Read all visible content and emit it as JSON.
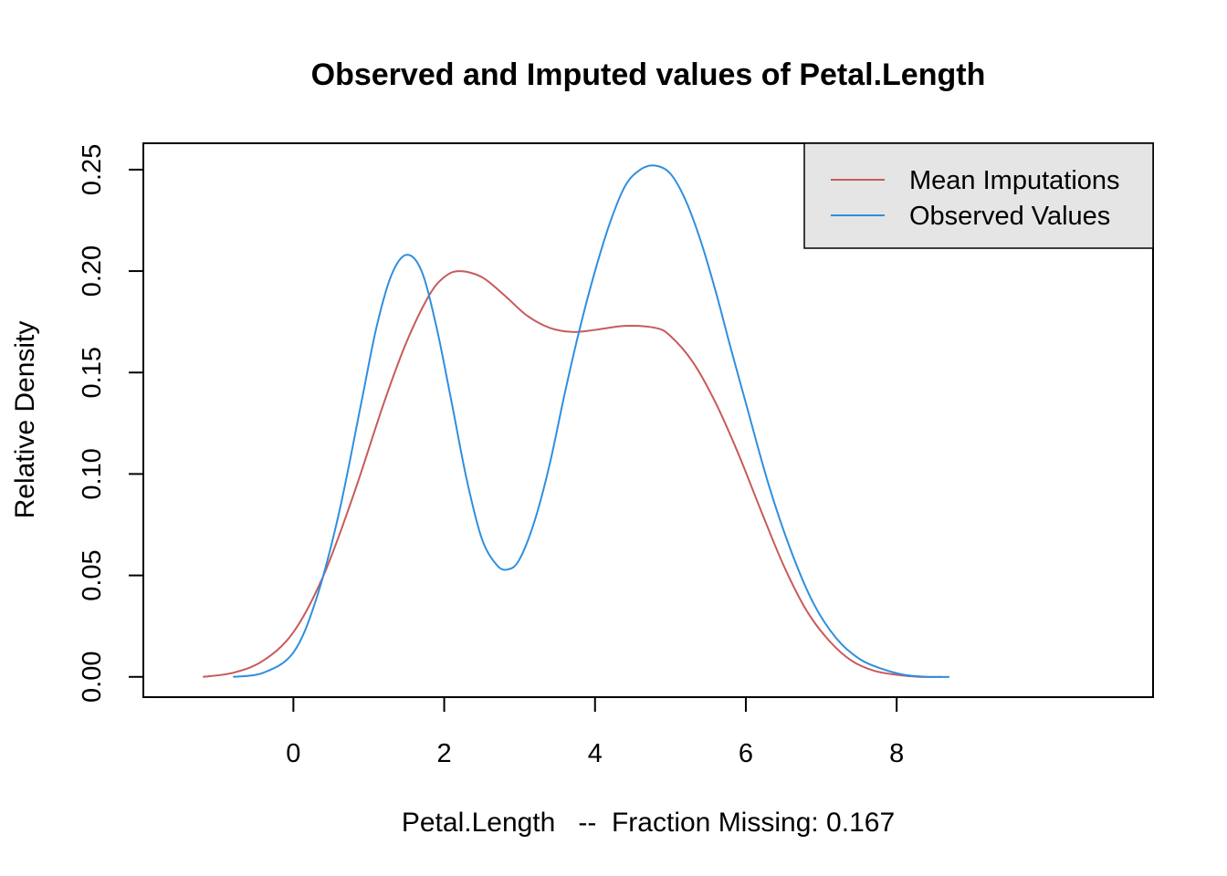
{
  "chart_data": {
    "type": "line",
    "title": "Observed and Imputed values of Petal.Length",
    "xlabel": "Petal.Length   --  Fraction Missing: 0.167",
    "ylabel": "Relative Density",
    "xlim": [
      -1.99,
      11.4
    ],
    "ylim": [
      -0.01,
      0.263
    ],
    "x_ticks": [
      0,
      2,
      4,
      6,
      8
    ],
    "x_tick_labels": [
      "0",
      "2",
      "4",
      "6",
      "8"
    ],
    "y_ticks": [
      0.0,
      0.05,
      0.1,
      0.15,
      0.2,
      0.25
    ],
    "y_tick_labels": [
      "0.00",
      "0.05",
      "0.10",
      "0.15",
      "0.20",
      "0.25"
    ],
    "grid": false,
    "legend_position": "top-right",
    "series": [
      {
        "name": "Mean Imputations",
        "color": "#C85A5A",
        "x": [
          -1.2,
          -0.8,
          -0.4,
          0.0,
          0.4,
          0.8,
          1.2,
          1.5,
          1.8,
          2.0,
          2.2,
          2.5,
          2.8,
          3.1,
          3.4,
          3.7,
          4.0,
          4.4,
          4.8,
          5.0,
          5.3,
          5.6,
          5.9,
          6.2,
          6.5,
          6.8,
          7.1,
          7.4,
          7.7,
          8.0,
          8.3,
          8.6
        ],
        "y": [
          0.0,
          0.002,
          0.008,
          0.022,
          0.05,
          0.09,
          0.135,
          0.165,
          0.188,
          0.197,
          0.2,
          0.197,
          0.188,
          0.178,
          0.172,
          0.17,
          0.171,
          0.173,
          0.172,
          0.168,
          0.155,
          0.135,
          0.11,
          0.082,
          0.055,
          0.033,
          0.018,
          0.008,
          0.003,
          0.001,
          0.0,
          0.0
        ]
      },
      {
        "name": "Observed Values",
        "color": "#2E8FE0",
        "x": [
          -0.8,
          -0.4,
          0.0,
          0.3,
          0.6,
          0.9,
          1.1,
          1.3,
          1.5,
          1.7,
          1.9,
          2.1,
          2.3,
          2.5,
          2.7,
          2.85,
          3.0,
          3.2,
          3.4,
          3.6,
          3.8,
          4.0,
          4.2,
          4.4,
          4.6,
          4.8,
          5.0,
          5.2,
          5.4,
          5.6,
          5.8,
          6.0,
          6.3,
          6.6,
          6.9,
          7.2,
          7.5,
          7.8,
          8.1,
          8.4,
          8.7
        ],
        "y": [
          0.0,
          0.002,
          0.012,
          0.038,
          0.08,
          0.135,
          0.172,
          0.198,
          0.208,
          0.2,
          0.172,
          0.135,
          0.097,
          0.068,
          0.055,
          0.053,
          0.058,
          0.077,
          0.105,
          0.14,
          0.172,
          0.2,
          0.224,
          0.242,
          0.25,
          0.252,
          0.248,
          0.235,
          0.215,
          0.19,
          0.162,
          0.135,
          0.095,
          0.062,
          0.036,
          0.019,
          0.009,
          0.004,
          0.001,
          0.0,
          0.0
        ]
      }
    ]
  }
}
